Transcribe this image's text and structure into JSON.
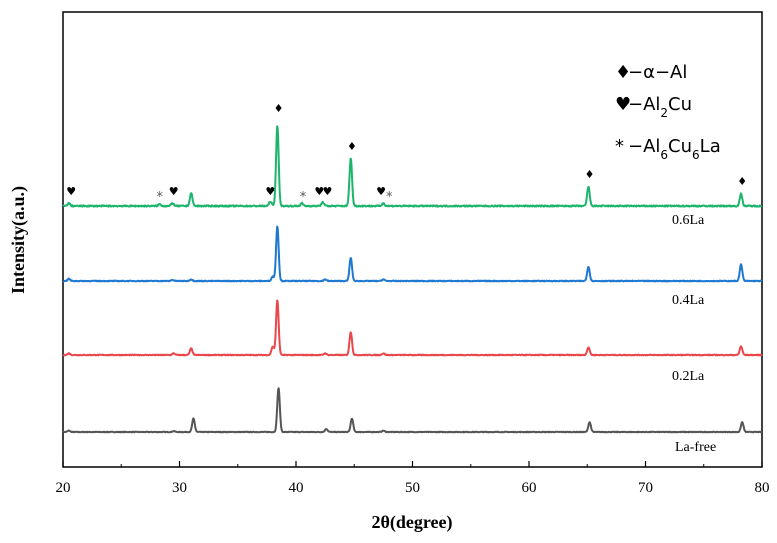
{
  "chart_data": {
    "type": "line",
    "xlabel": "2θ(degree)",
    "ylabel": "Intensity(a.u.)",
    "xlim": [
      20,
      80
    ],
    "x_ticks": [
      "20",
      "30",
      "40",
      "50",
      "60",
      "70",
      "80"
    ],
    "grid": false,
    "legend_placement": "top-right",
    "legend": [
      {
        "symbol": "♦",
        "text": "−α−Al"
      },
      {
        "symbol": "♥",
        "text": "−Al",
        "sub": "2",
        "text2": "Cu"
      },
      {
        "symbol": "*",
        "text": "−Al",
        "sub": "6",
        "text2": "Cu",
        "sub2": "6",
        "text3": "La"
      }
    ],
    "series": [
      {
        "name": "La-free",
        "color": "#555555",
        "peaks": [
          [
            20.5,
            3
          ],
          [
            29.5,
            2
          ],
          [
            31.2,
            30
          ],
          [
            38.5,
            98
          ],
          [
            42.6,
            7
          ],
          [
            44.8,
            30
          ],
          [
            47.5,
            3
          ],
          [
            65.2,
            22
          ],
          [
            78.3,
            22
          ]
        ]
      },
      {
        "name": "0.2La",
        "color": "#e8474b",
        "peaks": [
          [
            20.5,
            3
          ],
          [
            29.5,
            3
          ],
          [
            31.0,
            12
          ],
          [
            38.4,
            100
          ],
          [
            38.0,
            15
          ],
          [
            42.5,
            3
          ],
          [
            44.7,
            42
          ],
          [
            47.5,
            3
          ],
          [
            65.1,
            14
          ],
          [
            78.2,
            16
          ]
        ]
      },
      {
        "name": "0.4La",
        "color": "#1f78d1",
        "peaks": [
          [
            20.5,
            4
          ],
          [
            29.4,
            2
          ],
          [
            31.0,
            3
          ],
          [
            38.4,
            100
          ],
          [
            38.0,
            8
          ],
          [
            42.5,
            3
          ],
          [
            44.7,
            42
          ],
          [
            47.5,
            3
          ],
          [
            65.1,
            26
          ],
          [
            78.2,
            30
          ]
        ]
      },
      {
        "name": "0.6La",
        "color": "#1db56c",
        "peaks": [
          [
            20.5,
            3
          ],
          [
            28.3,
            2
          ],
          [
            29.4,
            3
          ],
          [
            31.0,
            14
          ],
          [
            37.8,
            5
          ],
          [
            38.4,
            88
          ],
          [
            40.5,
            3
          ],
          [
            42.3,
            4
          ],
          [
            44.7,
            52
          ],
          [
            47.5,
            3
          ],
          [
            65.1,
            21
          ],
          [
            78.2,
            13
          ]
        ]
      }
    ],
    "annotations": [
      {
        "symbol": "♥",
        "x": 20.7,
        "series": "0.6La"
      },
      {
        "symbol": "*",
        "x": 28.3,
        "series": "0.6La"
      },
      {
        "symbol": "♥",
        "x": 29.5,
        "series": "0.6La"
      },
      {
        "symbol": "♥",
        "x": 37.8,
        "series": "0.6La"
      },
      {
        "symbol": "♦",
        "x": 38.5,
        "series": "0.6La"
      },
      {
        "symbol": "*",
        "x": 40.6,
        "series": "0.6La"
      },
      {
        "symbol": "♥",
        "x": 42.0,
        "series": "0.6La"
      },
      {
        "symbol": "♥",
        "x": 42.7,
        "series": "0.6La"
      },
      {
        "symbol": "♦",
        "x": 44.8,
        "series": "0.6La"
      },
      {
        "symbol": "♥",
        "x": 47.3,
        "series": "0.6La"
      },
      {
        "symbol": "*",
        "x": 48.0,
        "series": "0.6La"
      },
      {
        "symbol": "♦",
        "x": 65.2,
        "series": "0.6La"
      },
      {
        "symbol": "♦",
        "x": 78.3,
        "series": "0.6La"
      }
    ]
  }
}
